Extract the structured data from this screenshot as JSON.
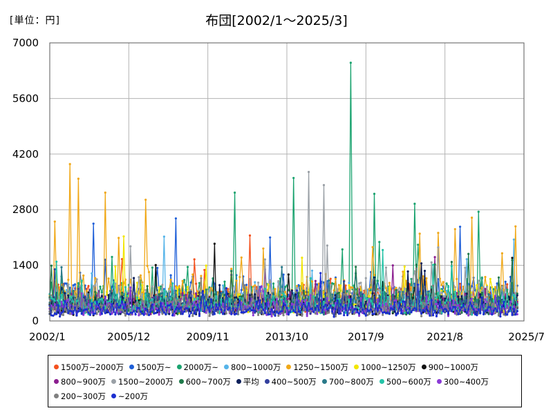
{
  "page": {
    "unit_label": "[単位：円]",
    "title": "布団[2002/1～2025/3]"
  },
  "chart_data": {
    "type": "line",
    "title": "布団[2002/1～2025/3]",
    "ylabel": "[単位：円]",
    "xlim": [
      "2002/1",
      "2025/7"
    ],
    "ylim": [
      0,
      7000
    ],
    "x_ticks": [
      "2002/1",
      "2005/12",
      "2009/11",
      "2013/10",
      "2017/9",
      "2021/8",
      "2025/7"
    ],
    "y_ticks": [
      0,
      1400,
      2800,
      4200,
      5600,
      7000
    ],
    "grid": true,
    "legend_position": "bottom",
    "series": [
      {
        "name": "1500万~2000万",
        "color": "#f4511e",
        "base": 550,
        "spike": [
          {
            "x": "2011/12",
            "y": 2150
          },
          {
            "x": "2009/3",
            "y": 1550
          }
        ]
      },
      {
        "name": "1500万~",
        "color": "#1e5fd8",
        "base": 700,
        "spike": [
          {
            "x": "2008/4",
            "y": 2580
          },
          {
            "x": "2004/3",
            "y": 2450
          }
        ]
      },
      {
        "name": "2000万~",
        "color": "#1aa36f",
        "base": 650,
        "spike": [
          {
            "x": "2016/12",
            "y": 6500
          },
          {
            "x": "2014/2",
            "y": 3600
          },
          {
            "x": "2018/2",
            "y": 3200
          },
          {
            "x": "2011/3",
            "y": 3230
          },
          {
            "x": "2020/2",
            "y": 2950
          },
          {
            "x": "2023/4",
            "y": 2750
          }
        ]
      },
      {
        "name": "800~1000万",
        "color": "#56b4e9",
        "base": 500,
        "spike": []
      },
      {
        "name": "1250~1500万",
        "color": "#f0a818",
        "base": 700,
        "spike": [
          {
            "x": "2003/1",
            "y": 3950
          },
          {
            "x": "2003/6",
            "y": 3580
          },
          {
            "x": "2006/10",
            "y": 3050
          },
          {
            "x": "2004/10",
            "y": 3230
          }
        ]
      },
      {
        "name": "1000~1250万",
        "color": "#f2e600",
        "base": 550,
        "spike": []
      },
      {
        "name": "900~1000万",
        "color": "#111111",
        "base": 400,
        "spike": []
      },
      {
        "name": "800~900万",
        "color": "#8b1e8f",
        "base": 450,
        "spike": []
      },
      {
        "name": "1500~2000万",
        "color": "#9aa0a6",
        "base": 600,
        "spike": [
          {
            "x": "2014/11",
            "y": 3750
          },
          {
            "x": "2015/8",
            "y": 3420
          }
        ]
      },
      {
        "name": "600~700万",
        "color": "#1f7a4a",
        "base": 450,
        "spike": []
      },
      {
        "name": "平均",
        "color": "#0d1f5a",
        "base": 420,
        "spike": []
      },
      {
        "name": "400~500万",
        "color": "#33409e",
        "base": 380,
        "spike": []
      },
      {
        "name": "700~800万",
        "color": "#2a7a8a",
        "base": 450,
        "spike": []
      },
      {
        "name": "500~600万",
        "color": "#25c4a8",
        "base": 420,
        "spike": []
      },
      {
        "name": "300~400万",
        "color": "#8a3ad6",
        "base": 330,
        "spike": []
      },
      {
        "name": "200~300万",
        "color": "#808080",
        "base": 320,
        "spike": []
      },
      {
        "name": "~200万",
        "color": "#1c2fd0",
        "base": 300,
        "spike": []
      }
    ]
  },
  "legend": {
    "rows": [
      [
        0,
        1,
        2,
        3,
        4,
        5,
        6
      ],
      [
        7,
        8,
        9,
        10,
        11,
        12,
        13,
        14
      ],
      [
        15,
        16
      ]
    ]
  }
}
